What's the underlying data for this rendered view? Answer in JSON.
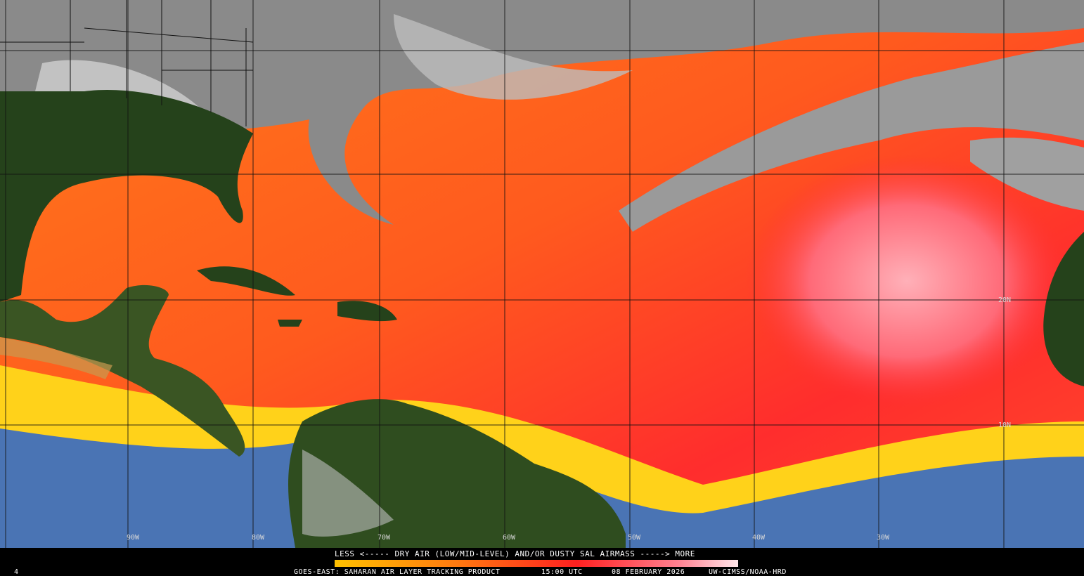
{
  "legend": {
    "caption": "LESS <----- DRY AIR (LOW/MID-LEVEL) AND/OR DUSTY SAL AIRMASS -----> MORE",
    "footer": [
      "GOES-EAST: SAHARAN AIR LAYER TRACKING PRODUCT",
      "15:00 UTC",
      "08 FEBRUARY 2026",
      "UW-CIMSS/NOAA-HRD"
    ]
  },
  "corner_label": "4",
  "map": {
    "longitude_labels": [
      "90W",
      "80W",
      "70W",
      "60W",
      "50W",
      "40W",
      "30W"
    ],
    "latitude_labels": [
      "20N",
      "10N"
    ]
  }
}
